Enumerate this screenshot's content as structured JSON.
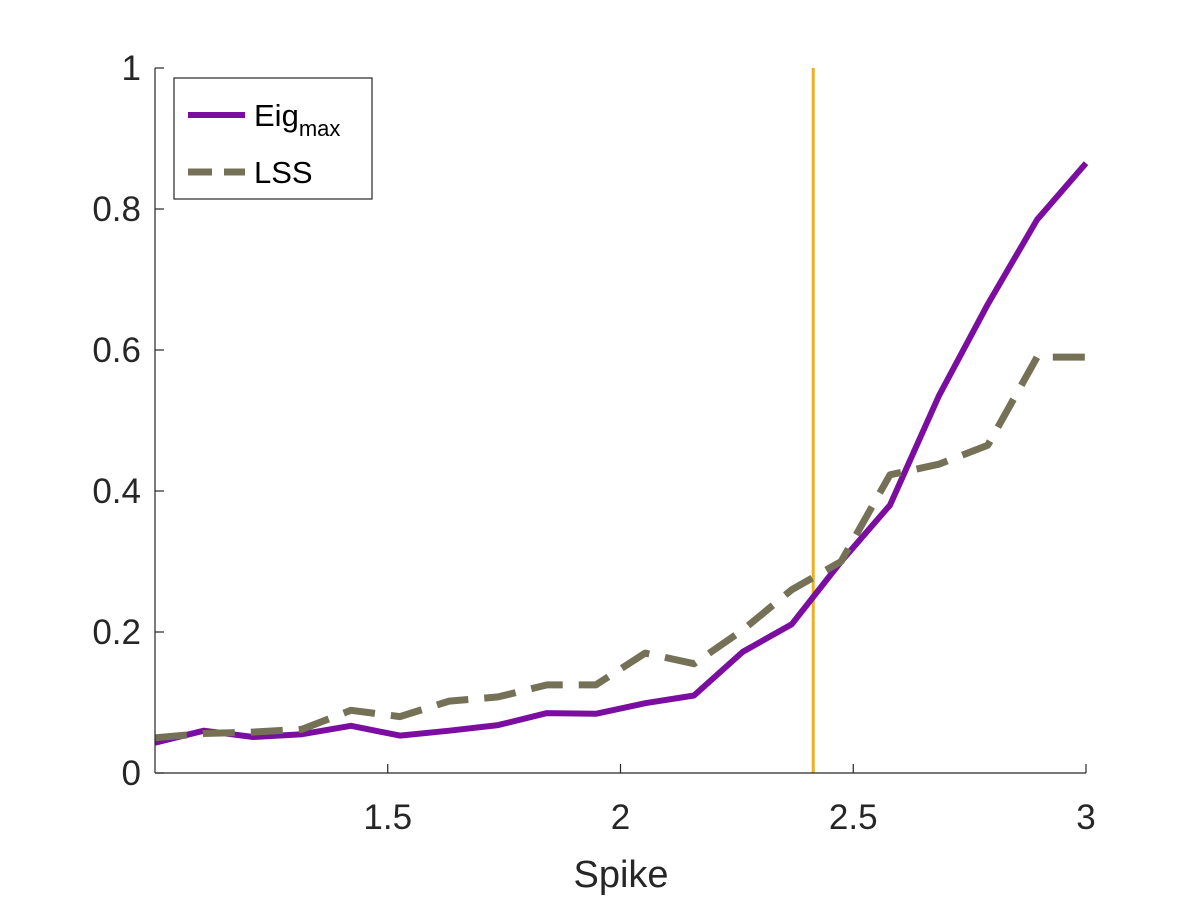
{
  "chart_data": {
    "type": "line",
    "xlabel": "Spike",
    "ylabel": "",
    "xlim": [
      1.0,
      3.0
    ],
    "ylim": [
      0,
      1
    ],
    "xticks": [
      1.5,
      2,
      2.5,
      3
    ],
    "xtick_labels": [
      "1.5",
      "2",
      "2.5",
      "3"
    ],
    "yticks": [
      0,
      0.2,
      0.4,
      0.6,
      0.8,
      1
    ],
    "ytick_labels": [
      "0",
      "0.2",
      "0.4",
      "0.6",
      "0.8",
      "1"
    ],
    "grid": false,
    "legend_position": "top-left",
    "series": [
      {
        "name": "Eig",
        "name_subscript": "max",
        "style": "solid",
        "color": "#7B0EA0",
        "x": [
          1.0,
          1.105,
          1.211,
          1.316,
          1.421,
          1.526,
          1.632,
          1.737,
          1.842,
          1.947,
          2.053,
          2.158,
          2.263,
          2.368,
          2.474,
          2.579,
          2.684,
          2.789,
          2.895,
          3.0
        ],
        "values": [
          0.043,
          0.06,
          0.051,
          0.055,
          0.067,
          0.053,
          0.06,
          0.068,
          0.085,
          0.084,
          0.099,
          0.11,
          0.172,
          0.211,
          0.3,
          0.38,
          0.535,
          0.665,
          0.785,
          0.865
        ]
      },
      {
        "name": "LSS",
        "style": "dashed",
        "color": "#757157",
        "x": [
          1.0,
          1.105,
          1.211,
          1.316,
          1.421,
          1.526,
          1.632,
          1.737,
          1.842,
          1.947,
          2.053,
          2.158,
          2.263,
          2.368,
          2.474,
          2.579,
          2.684,
          2.789,
          2.895,
          3.0
        ],
        "values": [
          0.05,
          0.056,
          0.058,
          0.062,
          0.089,
          0.08,
          0.102,
          0.108,
          0.125,
          0.125,
          0.17,
          0.155,
          0.203,
          0.26,
          0.3,
          0.423,
          0.438,
          0.465,
          0.59,
          0.59
        ]
      }
    ],
    "reference_lines": [
      {
        "orientation": "vertical",
        "x": 2.414,
        "color": "#EDB120"
      }
    ]
  }
}
